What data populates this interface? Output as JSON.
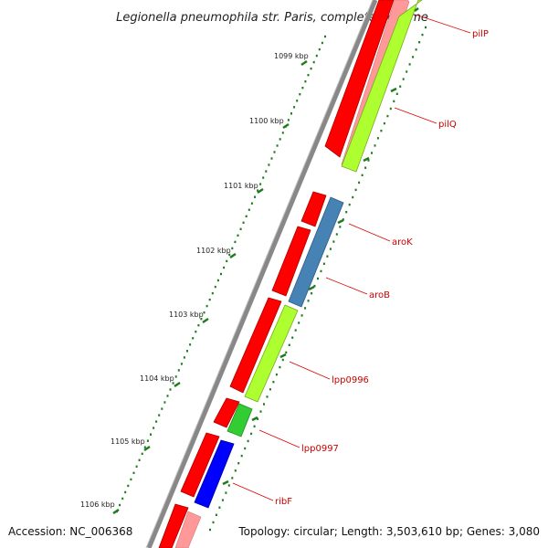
{
  "title": "Legionella pneumophila str. Paris, complete genome",
  "footer": {
    "accession": "Accession: NC_006368",
    "summary": "Topology: circular; Length: 3,503,610 bp; Genes: 3,080"
  },
  "ticks": [
    "1099 kbp",
    "1100 kbp",
    "1101 kbp",
    "1102 kbp",
    "1103 kbp",
    "1104 kbp",
    "1105 kbp",
    "1106 kbp"
  ],
  "gene_labels": [
    "pilP",
    "pilQ",
    "aroK",
    "aroB",
    "lpp0996",
    "lpp0997",
    "ribF"
  ],
  "colors": {
    "backbone": "#888888",
    "cds_track": "#ff0000",
    "cds_light": "#ff9999",
    "pilQ": "#adff2f",
    "aroK": "#4682b4",
    "aroB": "#4682b4",
    "lpp0996": "#adff2f",
    "lpp0997": "#32cd32",
    "ribF": "#0000ff",
    "gc_ticks": "#1e7b1e",
    "label_line": "#dd0000"
  }
}
